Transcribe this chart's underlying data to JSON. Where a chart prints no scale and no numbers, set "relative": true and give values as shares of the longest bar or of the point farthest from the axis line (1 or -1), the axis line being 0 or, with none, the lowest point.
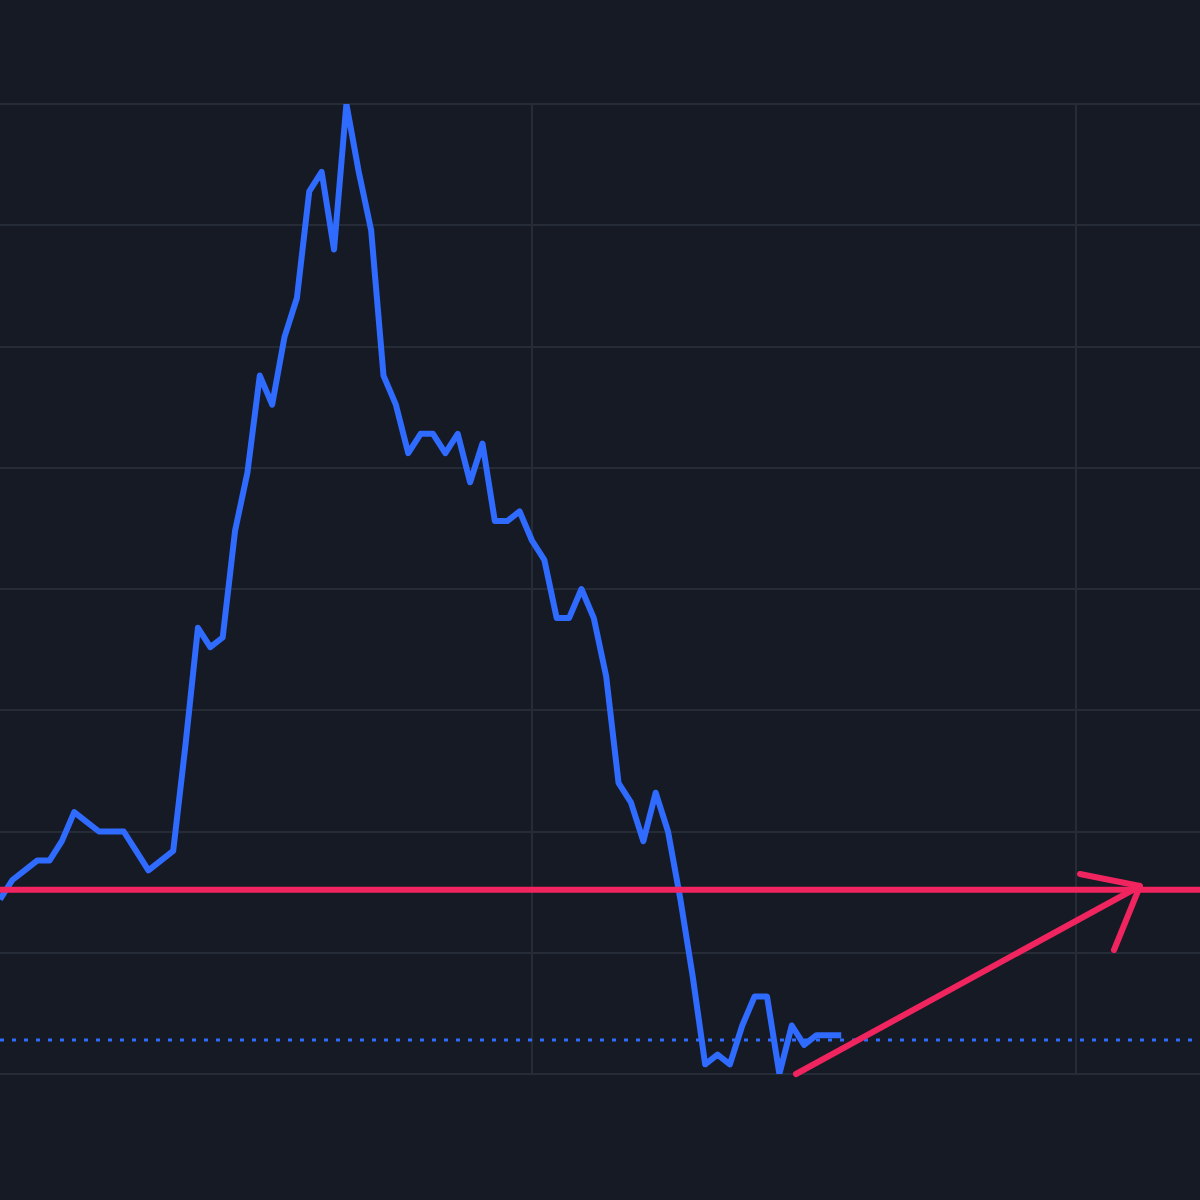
{
  "chart_data": {
    "type": "line",
    "relative": true,
    "grid": true,
    "legend": false,
    "marker": "none",
    "line_style": "solid",
    "categories": [
      null,
      null,
      null,
      null,
      null,
      null,
      null,
      null,
      null,
      null,
      null,
      null,
      null,
      null,
      null,
      null,
      null,
      null,
      null,
      null,
      null,
      null,
      null,
      null,
      null,
      null,
      null,
      null,
      null,
      null,
      null,
      null,
      null,
      null,
      null,
      null,
      null,
      null,
      null,
      null,
      null,
      null,
      null,
      null,
      null,
      null,
      null,
      null,
      null,
      null,
      null,
      null,
      null,
      null,
      null,
      null,
      null,
      null,
      null,
      null,
      null,
      null,
      null,
      null,
      null,
      null,
      null,
      null,
      null,
      null,
      null,
      null,
      null,
      null,
      null,
      null,
      null,
      null,
      null,
      null,
      null,
      null,
      null,
      null,
      null,
      null,
      null,
      null,
      null,
      null,
      null,
      null,
      null,
      null,
      null,
      null,
      null,
      null
    ],
    "series": [
      {
        "color": "#2f6bff",
        "values": [
          0.18,
          0.2,
          0.21,
          0.22,
          0.22,
          0.24,
          0.27,
          0.26,
          0.25,
          0.25,
          0.25,
          0.23,
          0.21,
          0.22,
          0.23,
          0.34,
          0.46,
          0.44,
          0.45,
          0.56,
          0.62,
          0.72,
          0.69,
          0.76,
          0.8,
          0.91,
          0.93,
          0.85,
          1.0,
          0.93,
          0.87,
          0.72,
          0.69,
          0.64,
          0.66,
          0.66,
          0.64,
          0.66,
          0.61,
          0.65,
          0.57,
          0.57,
          0.58,
          0.55,
          0.53,
          0.47,
          0.47,
          0.5,
          0.47,
          0.41,
          0.3,
          0.28,
          0.24,
          0.29,
          0.25,
          0.18,
          0.1,
          0.01,
          0.02,
          0.01,
          0.05,
          0.08,
          0.08,
          0,
          0.05,
          0.03,
          0.04,
          0.04,
          0.04,
          null,
          null,
          null,
          null,
          null,
          null,
          null,
          null,
          null,
          null,
          null,
          null,
          null,
          null,
          null,
          null,
          null,
          null,
          null,
          null,
          null,
          null,
          null,
          null,
          null,
          null,
          null,
          null,
          null
        ]
      }
    ],
    "ref_lines": [
      {
        "axis": "y",
        "value": 0.19,
        "color": "#f0245e",
        "line_style": "solid"
      },
      {
        "axis": "y",
        "value": 0.035,
        "color": "#2f6bff",
        "line_style": "dotted"
      }
    ]
  }
}
